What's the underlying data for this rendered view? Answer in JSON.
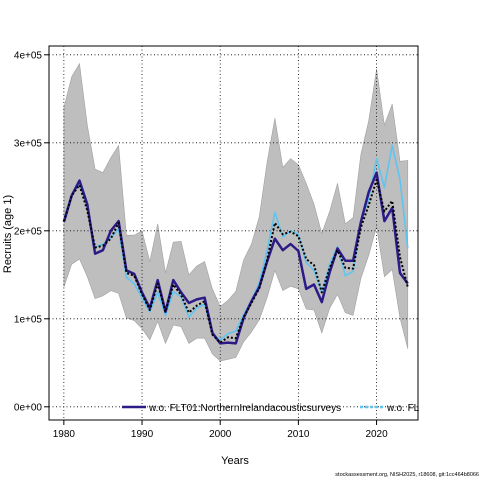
{
  "chart_data": {
    "type": "line",
    "xlabel": "Years",
    "ylabel": "Recruits (age 1)",
    "xlim": [
      1978.1,
      2025.3
    ],
    "ylim": [
      -15000,
      410000
    ],
    "x_ticks": [
      1980,
      1990,
      2000,
      2010,
      2020
    ],
    "y_ticks": [
      0,
      100000,
      200000,
      300000,
      400000
    ],
    "y_tick_labels": [
      "0e+00",
      "1e+05",
      "2e+05",
      "3e+05",
      "4e+05"
    ],
    "grid": "dotted",
    "legend_position": "bottom",
    "colors": {
      "band": "#bebebe",
      "base": "#000000",
      "northern_ireland": "#2e1a87",
      "fl": "#5ec4f0"
    },
    "x": [
      1980,
      1981,
      1982,
      1983,
      1984,
      1985,
      1986,
      1987,
      1988,
      1989,
      1990,
      1991,
      1992,
      1993,
      1994,
      1995,
      1996,
      1997,
      1998,
      1999,
      2000,
      2001,
      2002,
      2003,
      2004,
      2005,
      2006,
      2007,
      2008,
      2009,
      2010,
      2011,
      2012,
      2013,
      2014,
      2015,
      2016,
      2017,
      2018,
      2019,
      2020,
      2021,
      2022,
      2023,
      2024
    ],
    "series": [
      {
        "key": "base",
        "style": "dotted",
        "values": [
          211000,
          240000,
          252000,
          223000,
          181000,
          183000,
          191000,
          209000,
          152000,
          149000,
          128000,
          110000,
          140000,
          108000,
          139000,
          127000,
          107000,
          115000,
          120000,
          82000,
          73000,
          79000,
          78000,
          102000,
          118000,
          135000,
          167000,
          209000,
          196000,
          199000,
          194000,
          168000,
          161000,
          130000,
          158000,
          178000,
          158000,
          157000,
          204000,
          229000,
          258000,
          222000,
          234000,
          170000,
          136000
        ]
      },
      {
        "key": "northern_ireland",
        "name": "w.o. FLT01:NorthernIrelandacousticsurveys",
        "style": "solid",
        "values": [
          210000,
          240000,
          257000,
          230000,
          174000,
          178000,
          200000,
          211000,
          155000,
          151000,
          130000,
          112000,
          144000,
          108000,
          144000,
          130000,
          118000,
          122000,
          124000,
          84000,
          72000,
          73000,
          72000,
          101000,
          120000,
          136000,
          165000,
          191000,
          178000,
          185000,
          177000,
          134000,
          139000,
          119000,
          153000,
          180000,
          166000,
          166000,
          210000,
          244000,
          266000,
          211000,
          226000,
          152000,
          140000
        ]
      },
      {
        "key": "fl",
        "name": "w.o. FL",
        "style": "solid",
        "values": [
          213000,
          242000,
          254000,
          226000,
          181000,
          185000,
          192000,
          202000,
          147000,
          140000,
          124000,
          108000,
          130000,
          104000,
          131000,
          125000,
          102000,
          112000,
          117000,
          83000,
          76000,
          83000,
          86000,
          105000,
          121000,
          141000,
          178000,
          221000,
          193000,
          200000,
          196000,
          164000,
          155000,
          130000,
          162000,
          182000,
          149000,
          154000,
          211000,
          236000,
          282000,
          249000,
          297000,
          258000,
          180000
        ]
      }
    ],
    "band": {
      "upper": [
        340000,
        375000,
        390000,
        320000,
        270000,
        266000,
        283000,
        297000,
        195000,
        195000,
        200000,
        165000,
        208000,
        152000,
        187000,
        188000,
        150000,
        160000,
        165000,
        134000,
        114000,
        121000,
        131000,
        167000,
        185000,
        216000,
        278000,
        328000,
        272000,
        282000,
        275000,
        254000,
        230000,
        197000,
        222000,
        254000,
        208000,
        215000,
        287000,
        325000,
        384000,
        320000,
        344000,
        279000,
        280000
      ],
      "lower": [
        136000,
        162000,
        168000,
        148000,
        123000,
        126000,
        132000,
        129000,
        101000,
        98000,
        89000,
        76000,
        97000,
        72000,
        93000,
        91000,
        72000,
        78000,
        78000,
        60000,
        52000,
        54000,
        56000,
        74000,
        85000,
        99000,
        124000,
        155000,
        132000,
        137000,
        134000,
        111000,
        110000,
        84000,
        112000,
        128000,
        107000,
        104000,
        146000,
        172000,
        205000,
        148000,
        156000,
        101000,
        66000
      ]
    }
  },
  "credit": "stockassessment.org, NISH2025, r18608, git:1cc464b8066"
}
